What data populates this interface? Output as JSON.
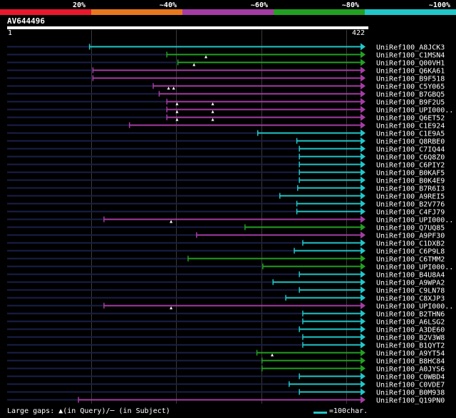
{
  "legend": {
    "labels": [
      "20%",
      "~40%",
      "~60%",
      "~80%",
      "~100%"
    ],
    "colors": [
      "#e8192c",
      "#e8781e",
      "#a53ca5",
      "#22a022",
      "#21c6c9"
    ]
  },
  "query": {
    "name": "AV644496",
    "start_label": "1",
    "end_label": "422"
  },
  "footer": {
    "gaps_text": "Large gaps: ▲(in Query)/─ (in Subject)",
    "scale_text": "=100char."
  },
  "chart_data": {
    "type": "alignment-map",
    "query_length": 422,
    "x_ticks": [
      1,
      100,
      200,
      300,
      400,
      422
    ],
    "grid": true,
    "rows": [
      {
        "name": "UniRef100_A8JCK3",
        "start": 98,
        "end": 422,
        "identity": "~100%",
        "color": "#21c6c9",
        "gaps": []
      },
      {
        "name": "UniRef100_C1MSN4",
        "start": 189,
        "end": 422,
        "identity": "~80%",
        "color": "#22a022",
        "gaps": [
          235
        ]
      },
      {
        "name": "UniRef100_Q00VH1",
        "start": 202,
        "end": 422,
        "identity": "~80%",
        "color": "#22a022",
        "gaps": [
          221
        ]
      },
      {
        "name": "UniRef100_Q6KA61",
        "start": 102,
        "end": 422,
        "identity": "~60%",
        "color": "#a53ca5",
        "gaps": []
      },
      {
        "name": "UniRef100_B9F518",
        "start": 102,
        "end": 422,
        "identity": "~60%",
        "color": "#a53ca5",
        "gaps": []
      },
      {
        "name": "UniRef100_C5Y065",
        "start": 173,
        "end": 422,
        "identity": "~60%",
        "color": "#a53ca5",
        "gaps": [
          191,
          197
        ]
      },
      {
        "name": "UniRef100_B7GBQ5",
        "start": 180,
        "end": 422,
        "identity": "~60%",
        "color": "#a53ca5",
        "gaps": []
      },
      {
        "name": "UniRef100_B9F2U5",
        "start": 189,
        "end": 422,
        "identity": "~60%",
        "color": "#a53ca5",
        "gaps": [
          201,
          243
        ]
      },
      {
        "name": "UniRef100_UPI000..",
        "start": 189,
        "end": 422,
        "identity": "~60%",
        "color": "#a53ca5",
        "gaps": [
          201,
          243
        ]
      },
      {
        "name": "UniRef100_Q6ET52",
        "start": 189,
        "end": 422,
        "identity": "~60%",
        "color": "#a53ca5",
        "gaps": [
          201,
          243
        ]
      },
      {
        "name": "UniRef100_C1E924",
        "start": 145,
        "end": 422,
        "identity": "~60%",
        "color": "#a53ca5",
        "gaps": []
      },
      {
        "name": "UniRef100_C1E9A5",
        "start": 296,
        "end": 422,
        "identity": "~100%",
        "color": "#21c6c9",
        "gaps": []
      },
      {
        "name": "UniRef100_Q8RBE0",
        "start": 342,
        "end": 422,
        "identity": "~100%",
        "color": "#21c6c9",
        "gaps": []
      },
      {
        "name": "UniRef100_C7IQ44",
        "start": 345,
        "end": 422,
        "identity": "~100%",
        "color": "#21c6c9",
        "gaps": []
      },
      {
        "name": "UniRef100_C6Q8Z0",
        "start": 345,
        "end": 422,
        "identity": "~100%",
        "color": "#21c6c9",
        "gaps": []
      },
      {
        "name": "UniRef100_C6PIY2",
        "start": 345,
        "end": 422,
        "identity": "~100%",
        "color": "#21c6c9",
        "gaps": []
      },
      {
        "name": "UniRef100_B0KAF5",
        "start": 345,
        "end": 422,
        "identity": "~100%",
        "color": "#21c6c9",
        "gaps": []
      },
      {
        "name": "UniRef100_B0K4E9",
        "start": 345,
        "end": 422,
        "identity": "~100%",
        "color": "#21c6c9",
        "gaps": []
      },
      {
        "name": "UniRef100_B7R6I3",
        "start": 343,
        "end": 422,
        "identity": "~100%",
        "color": "#21c6c9",
        "gaps": []
      },
      {
        "name": "UniRef100_A9REI5",
        "start": 322,
        "end": 422,
        "identity": "~100%",
        "color": "#21c6c9",
        "gaps": []
      },
      {
        "name": "UniRef100_B2V776",
        "start": 342,
        "end": 422,
        "identity": "~100%",
        "color": "#21c6c9",
        "gaps": []
      },
      {
        "name": "UniRef100_C4FJ79",
        "start": 342,
        "end": 422,
        "identity": "~100%",
        "color": "#21c6c9",
        "gaps": []
      },
      {
        "name": "UniRef100_UPI000..",
        "start": 115,
        "end": 422,
        "identity": "~60%",
        "color": "#a53ca5",
        "gaps": [
          194
        ]
      },
      {
        "name": "UniRef100_Q7UQ85",
        "start": 281,
        "end": 422,
        "identity": "~80%",
        "color": "#22a022",
        "gaps": []
      },
      {
        "name": "UniRef100_A9PF30",
        "start": 224,
        "end": 422,
        "identity": "~60%",
        "color": "#a53ca5",
        "gaps": []
      },
      {
        "name": "UniRef100_C1DXB2",
        "start": 349,
        "end": 422,
        "identity": "~100%",
        "color": "#21c6c9",
        "gaps": []
      },
      {
        "name": "UniRef100_C6P9L8",
        "start": 339,
        "end": 422,
        "identity": "~100%",
        "color": "#21c6c9",
        "gaps": []
      },
      {
        "name": "UniRef100_C6TMM2",
        "start": 214,
        "end": 422,
        "identity": "~80%",
        "color": "#22a022",
        "gaps": []
      },
      {
        "name": "UniRef100_UPI000..",
        "start": 302,
        "end": 422,
        "identity": "~80%",
        "color": "#22a022",
        "gaps": []
      },
      {
        "name": "UniRef100_B4U8A4",
        "start": 345,
        "end": 422,
        "identity": "~100%",
        "color": "#21c6c9",
        "gaps": []
      },
      {
        "name": "UniRef100_A9WPA2",
        "start": 314,
        "end": 422,
        "identity": "~100%",
        "color": "#21c6c9",
        "gaps": []
      },
      {
        "name": "UniRef100_C9LN78",
        "start": 345,
        "end": 422,
        "identity": "~100%",
        "color": "#21c6c9",
        "gaps": []
      },
      {
        "name": "UniRef100_C8XJP3",
        "start": 329,
        "end": 422,
        "identity": "~100%",
        "color": "#21c6c9",
        "gaps": []
      },
      {
        "name": "UniRef100_UPI000..",
        "start": 115,
        "end": 422,
        "identity": "~60%",
        "color": "#a53ca5",
        "gaps": [
          194
        ]
      },
      {
        "name": "UniRef100_B2THN6",
        "start": 349,
        "end": 422,
        "identity": "~100%",
        "color": "#21c6c9",
        "gaps": []
      },
      {
        "name": "UniRef100_A6LSG2",
        "start": 349,
        "end": 422,
        "identity": "~100%",
        "color": "#21c6c9",
        "gaps": []
      },
      {
        "name": "UniRef100_A3DE60",
        "start": 345,
        "end": 422,
        "identity": "~100%",
        "color": "#21c6c9",
        "gaps": []
      },
      {
        "name": "UniRef100_B2V3W8",
        "start": 349,
        "end": 422,
        "identity": "~100%",
        "color": "#21c6c9",
        "gaps": []
      },
      {
        "name": "UniRef100_B1QYT2",
        "start": 349,
        "end": 422,
        "identity": "~100%",
        "color": "#21c6c9",
        "gaps": []
      },
      {
        "name": "UniRef100_A9YT54",
        "start": 295,
        "end": 422,
        "identity": "~80%",
        "color": "#22a022",
        "gaps": [
          313
        ]
      },
      {
        "name": "UniRef100_B8HC84",
        "start": 301,
        "end": 422,
        "identity": "~80%",
        "color": "#22a022",
        "gaps": []
      },
      {
        "name": "UniRef100_A0JYS6",
        "start": 301,
        "end": 422,
        "identity": "~80%",
        "color": "#22a022",
        "gaps": []
      },
      {
        "name": "UniRef100_C0WBD4",
        "start": 345,
        "end": 422,
        "identity": "~100%",
        "color": "#21c6c9",
        "gaps": []
      },
      {
        "name": "UniRef100_C0VDE7",
        "start": 333,
        "end": 422,
        "identity": "~100%",
        "color": "#21c6c9",
        "gaps": []
      },
      {
        "name": "UniRef100_B0M938",
        "start": 345,
        "end": 422,
        "identity": "~100%",
        "color": "#21c6c9",
        "gaps": []
      },
      {
        "name": "UniRef100_Q19PN0",
        "start": 85,
        "end": 422,
        "identity": "~60%",
        "color": "#a53ca5",
        "gaps": []
      }
    ]
  }
}
